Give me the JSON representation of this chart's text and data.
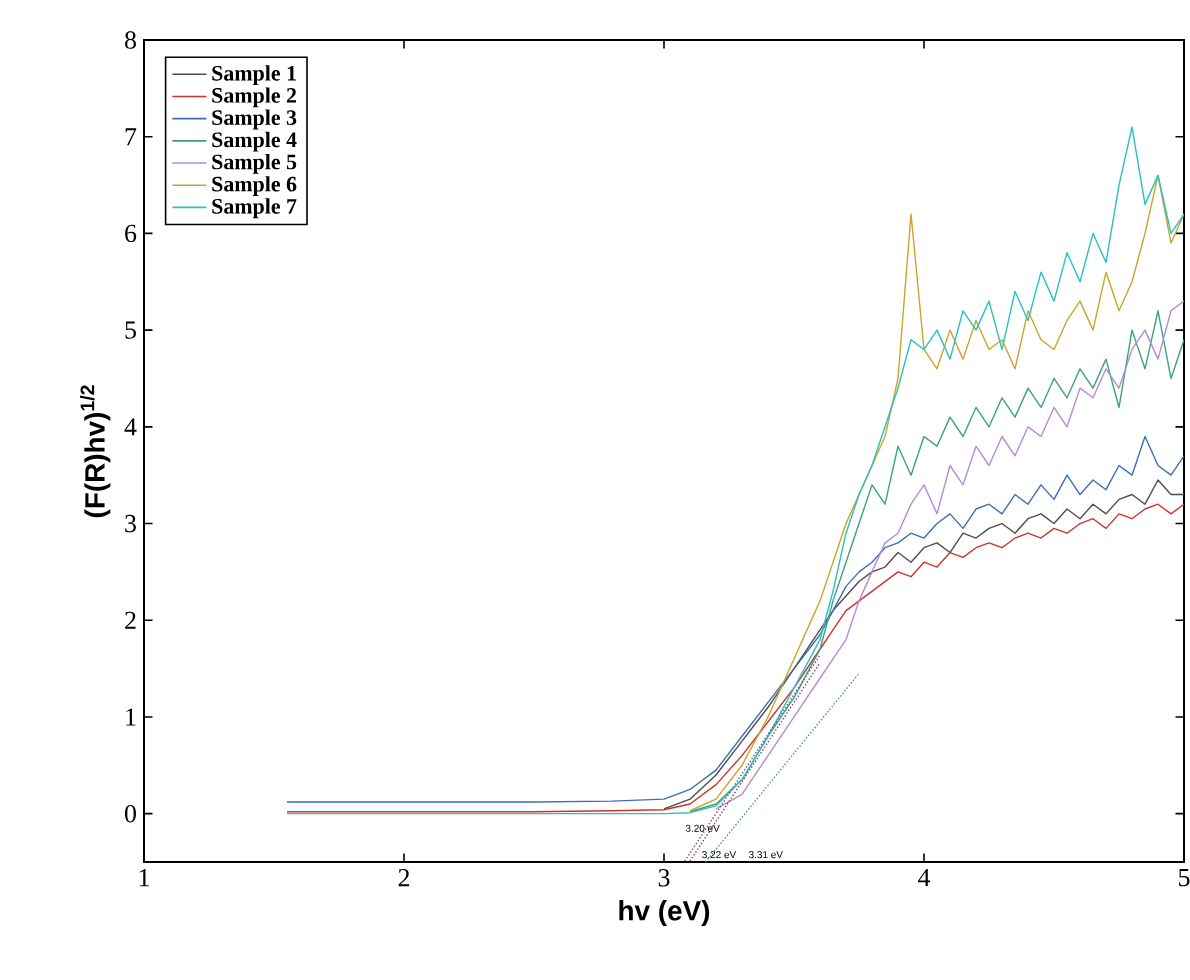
{
  "chart_data": {
    "type": "line",
    "xlabel": "hv (eV)",
    "ylabel": "(F(R)hv)$^{1/2}$",
    "xlim": [
      1,
      5
    ],
    "xticks": [
      1,
      2,
      3,
      4,
      5
    ],
    "ylim": [
      -0.5,
      8
    ],
    "yticks": [
      0,
      1,
      2,
      3,
      4,
      5,
      6,
      7,
      8
    ],
    "grid": false,
    "legend": "top left",
    "x": [
      1.55,
      2.0,
      2.5,
      2.8,
      3.0,
      3.1,
      3.2,
      3.3,
      3.4,
      3.5,
      3.6,
      3.65,
      3.7,
      3.75,
      3.8,
      3.85,
      3.9,
      3.95,
      4.0,
      4.05,
      4.1,
      4.15,
      4.2,
      4.25,
      4.3,
      4.35,
      4.4,
      4.45,
      4.5,
      4.55,
      4.6,
      4.65,
      4.7,
      4.75,
      4.8,
      4.85,
      4.9,
      4.95,
      5.0
    ],
    "series": [
      {
        "name": "Sample 1",
        "color": "#4d4d4d",
        "values": [
          null,
          null,
          null,
          null,
          0.05,
          0.15,
          0.4,
          0.75,
          1.1,
          1.5,
          1.9,
          2.1,
          2.25,
          2.4,
          2.5,
          2.55,
          2.7,
          2.6,
          2.75,
          2.8,
          2.7,
          2.9,
          2.85,
          2.95,
          3.0,
          2.9,
          3.05,
          3.1,
          3.0,
          3.15,
          3.05,
          3.2,
          3.1,
          3.25,
          3.3,
          3.2,
          3.45,
          3.3,
          3.3
        ]
      },
      {
        "name": "Sample 2",
        "color": "#d03030",
        "values": [
          0.02,
          0.02,
          0.02,
          0.03,
          0.04,
          0.1,
          0.3,
          0.6,
          0.95,
          1.3,
          1.7,
          1.9,
          2.1,
          2.2,
          2.3,
          2.4,
          2.5,
          2.45,
          2.6,
          2.55,
          2.7,
          2.65,
          2.75,
          2.8,
          2.75,
          2.85,
          2.9,
          2.85,
          2.95,
          2.9,
          3.0,
          3.05,
          2.95,
          3.1,
          3.05,
          3.15,
          3.2,
          3.1,
          3.2
        ]
      },
      {
        "name": "Sample 3",
        "color": "#3a6fb5",
        "values": [
          0.12,
          0.12,
          0.12,
          0.13,
          0.15,
          0.25,
          0.45,
          0.8,
          1.15,
          1.5,
          1.85,
          2.1,
          2.35,
          2.5,
          2.6,
          2.75,
          2.8,
          2.9,
          2.85,
          3.0,
          3.1,
          2.95,
          3.15,
          3.2,
          3.1,
          3.3,
          3.2,
          3.4,
          3.25,
          3.5,
          3.3,
          3.45,
          3.35,
          3.6,
          3.5,
          3.9,
          3.6,
          3.5,
          3.7
        ]
      },
      {
        "name": "Sample 4",
        "color": "#3aa37a",
        "values": [
          null,
          null,
          null,
          null,
          null,
          0.02,
          0.1,
          0.35,
          0.8,
          1.2,
          1.7,
          2.2,
          2.6,
          3.0,
          3.4,
          3.2,
          3.8,
          3.5,
          3.9,
          3.8,
          4.1,
          3.9,
          4.2,
          4.0,
          4.3,
          4.1,
          4.4,
          4.2,
          4.5,
          4.3,
          4.6,
          4.4,
          4.7,
          4.2,
          5.0,
          4.6,
          5.2,
          4.5,
          4.9
        ]
      },
      {
        "name": "Sample 5",
        "color": "#b58ad8",
        "values": [
          null,
          null,
          null,
          null,
          null,
          null,
          0.05,
          0.2,
          0.6,
          1.0,
          1.4,
          1.6,
          1.8,
          2.2,
          2.5,
          2.8,
          2.9,
          3.2,
          3.4,
          3.1,
          3.6,
          3.4,
          3.8,
          3.6,
          3.9,
          3.7,
          4.0,
          3.9,
          4.2,
          4.0,
          4.4,
          4.3,
          4.6,
          4.4,
          4.8,
          5.0,
          4.7,
          5.2,
          5.3
        ]
      },
      {
        "name": "Sample 6",
        "color": "#c9a52a",
        "values": [
          null,
          null,
          null,
          null,
          null,
          0.03,
          0.15,
          0.5,
          1.0,
          1.6,
          2.2,
          2.6,
          3.0,
          3.3,
          3.6,
          3.9,
          4.5,
          6.2,
          4.8,
          4.6,
          5.0,
          4.7,
          5.1,
          4.8,
          4.9,
          4.6,
          5.2,
          4.9,
          4.8,
          5.1,
          5.3,
          5.0,
          5.6,
          5.2,
          5.5,
          6.0,
          6.6,
          5.9,
          6.2
        ]
      },
      {
        "name": "Sample 7",
        "color": "#2bbfc0",
        "values": [
          0.0,
          0.0,
          0.0,
          0.0,
          0.0,
          0.01,
          0.08,
          0.35,
          0.8,
          1.3,
          1.8,
          2.3,
          2.9,
          3.3,
          3.6,
          4.0,
          4.4,
          4.9,
          4.8,
          5.0,
          4.7,
          5.2,
          5.0,
          5.3,
          4.8,
          5.4,
          5.1,
          5.6,
          5.3,
          5.8,
          5.5,
          6.0,
          5.7,
          6.5,
          7.1,
          6.3,
          6.6,
          6.0,
          6.2
        ]
      },
      {
        "type": "line",
        "line_style": "dotted",
        "color": "#6a4a8a",
        "x": [
          3.08,
          3.6
        ],
        "values": [
          -0.49,
          1.64
        ]
      },
      {
        "type": "line",
        "line_style": "dotted",
        "color": "#8a3a5a",
        "x": [
          3.1,
          3.6
        ],
        "values": [
          -0.49,
          1.56
        ]
      },
      {
        "type": "line",
        "line_style": "dotted",
        "color": "#3a9a5a",
        "x": [
          3.16,
          3.75
        ],
        "values": [
          -0.5,
          1.45
        ]
      }
    ],
    "annotations": [
      "3.20 eV",
      "3.22 eV",
      "3.31 eV"
    ]
  }
}
